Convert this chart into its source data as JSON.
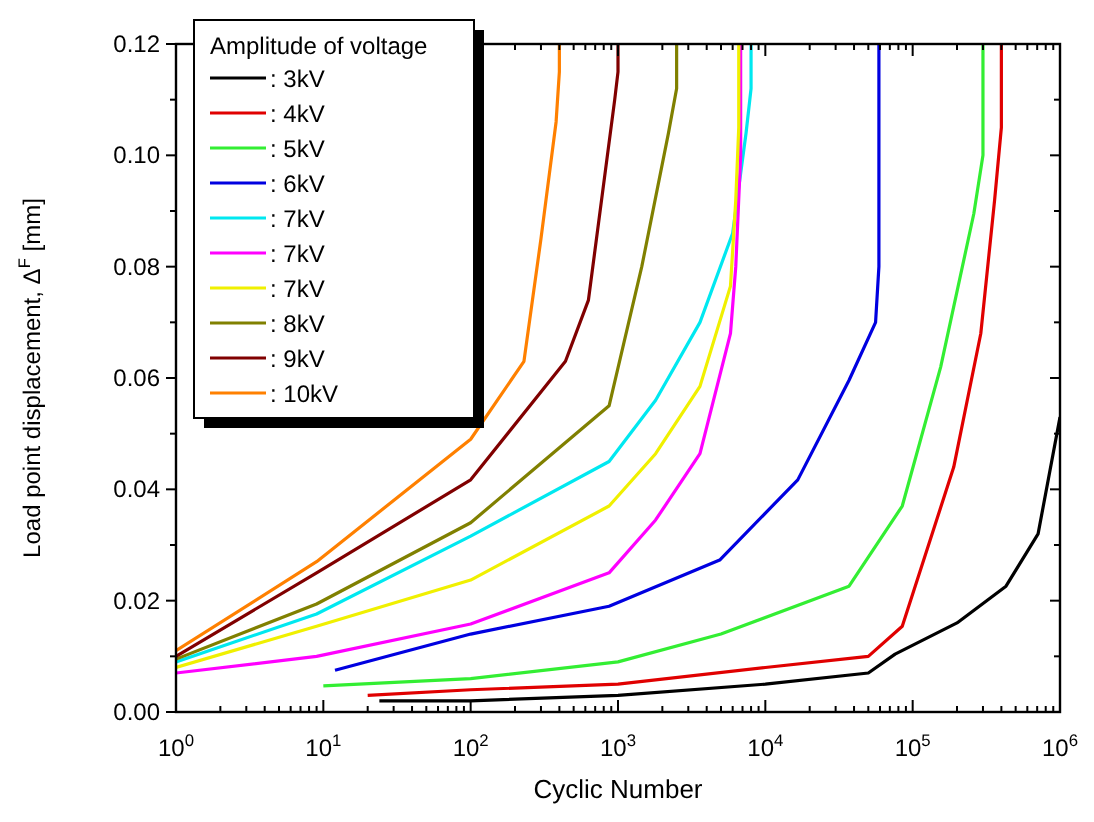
{
  "chart_data": {
    "type": "line",
    "xlabel": "Cyclic Number",
    "ylabel": "Load point displacement, Δ$^{F}$ [mm]",
    "legend_title": "Amplitude of voltage",
    "log": "x",
    "legend": "top left",
    "grid": false,
    "line_style": "solid",
    "xlim": [
      1,
      1000000
    ],
    "xticks": [
      {
        "value": 1,
        "label": "10$^{0}$"
      },
      {
        "value": 10,
        "label": "10$^{1}$"
      },
      {
        "value": 100,
        "label": "10$^{2}$"
      },
      {
        "value": 1000,
        "label": "10$^{3}$"
      },
      {
        "value": 10000,
        "label": "10$^{4}$"
      },
      {
        "value": 100000,
        "label": "10$^{5}$"
      },
      {
        "value": 1000000,
        "label": "10$^{6}$"
      }
    ],
    "ylim": [
      0,
      0.12
    ],
    "yticks": [
      {
        "value": 0,
        "label": "0.00"
      },
      {
        "value": 0.02,
        "label": "0.02"
      },
      {
        "value": 0.04,
        "label": "0.04"
      },
      {
        "value": 0.06,
        "label": "0.06"
      },
      {
        "value": 0.08,
        "label": "0.08"
      },
      {
        "value": 0.1,
        "label": "0.10"
      },
      {
        "value": 0.12,
        "label": "0.12"
      }
    ],
    "series": [
      {
        "name": ": 3kV",
        "color": "#000000",
        "x": [
          24,
          100,
          1000,
          10000,
          50000,
          76000,
          200000,
          430000,
          710000,
          1000000
        ],
        "values": [
          0.002,
          0.002,
          0.003,
          0.005,
          0.007,
          0.0104,
          0.016,
          0.0226,
          0.032,
          0.053
        ]
      },
      {
        "name": ": 4kV",
        "color": "#e00000",
        "x": [
          20,
          100,
          1000,
          10000,
          50000,
          85000,
          190000,
          290000,
          360000,
          400000,
          400000
        ],
        "values": [
          0.003,
          0.004,
          0.005,
          0.008,
          0.01,
          0.0154,
          0.044,
          0.068,
          0.092,
          0.105,
          0.12
        ]
      },
      {
        "name": ": 5kV",
        "color": "#33ee33",
        "x": [
          10,
          100,
          1000,
          5000,
          37000,
          85000,
          155000,
          260000,
          300000,
          300000
        ],
        "values": [
          0.0047,
          0.006,
          0.009,
          0.014,
          0.0226,
          0.037,
          0.062,
          0.0895,
          0.1,
          0.12
        ]
      },
      {
        "name": ": 6kV",
        "color": "#0000e0",
        "x": [
          12,
          100,
          870,
          4900,
          16600,
          37000,
          56000,
          59000,
          59000
        ],
        "values": [
          0.0075,
          0.014,
          0.019,
          0.0273,
          0.0417,
          0.0596,
          0.07,
          0.08,
          0.12
        ]
      },
      {
        "name": ": 7kV",
        "color": "#00e8f0",
        "x": [
          1,
          9,
          100,
          870,
          1800,
          3600,
          6000,
          7400,
          8000,
          8000
        ],
        "values": [
          0.009,
          0.0176,
          0.0316,
          0.045,
          0.056,
          0.07,
          0.086,
          0.104,
          0.112,
          0.12
        ]
      },
      {
        "name": ": 7kV",
        "color": "#ff00ff",
        "x": [
          1,
          9,
          100,
          870,
          1800,
          3600,
          5800,
          6300,
          6800,
          6800
        ],
        "values": [
          0.007,
          0.01,
          0.0158,
          0.025,
          0.0345,
          0.0464,
          0.068,
          0.08,
          0.1,
          0.12
        ]
      },
      {
        "name": ": 7kV",
        "color": "#f0f000",
        "x": [
          1,
          9,
          100,
          870,
          1800,
          3600,
          5800,
          6300,
          6600,
          6600
        ],
        "values": [
          0.008,
          0.0154,
          0.0237,
          0.037,
          0.0464,
          0.0585,
          0.0765,
          0.092,
          0.105,
          0.12
        ]
      },
      {
        "name": ": 8kV",
        "color": "#808000",
        "x": [
          1,
          9,
          100,
          870,
          1450,
          2200,
          2500,
          2500
        ],
        "values": [
          0.0095,
          0.0194,
          0.034,
          0.055,
          0.08,
          0.104,
          0.112,
          0.12
        ]
      },
      {
        "name": ": 9kV",
        "color": "#800000",
        "x": [
          1,
          9,
          100,
          440,
          630,
          950,
          1000,
          1000
        ],
        "values": [
          0.01,
          0.025,
          0.0417,
          0.063,
          0.074,
          0.11,
          0.115,
          0.12
        ]
      },
      {
        "name": ": 10kV",
        "color": "#ff8000",
        "x": [
          1,
          9,
          100,
          230,
          300,
          380,
          400,
          400
        ],
        "values": [
          0.011,
          0.027,
          0.049,
          0.063,
          0.085,
          0.106,
          0.115,
          0.12
        ]
      }
    ]
  }
}
